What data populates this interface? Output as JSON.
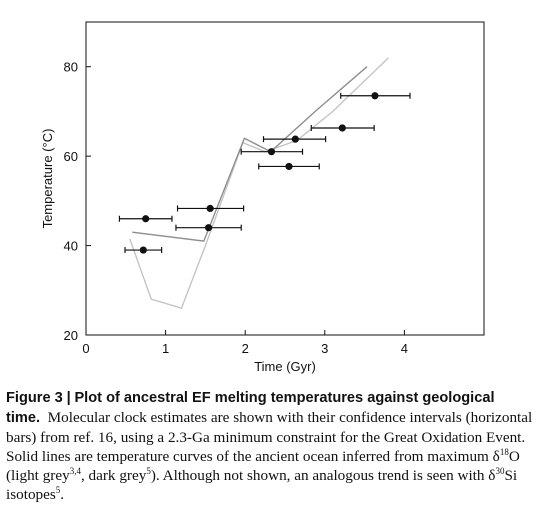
{
  "chart_data": {
    "type": "scatter",
    "xlabel": "Time (Gyr)",
    "ylabel": "Temperature (°C)",
    "xlim": [
      0,
      5
    ],
    "ylim": [
      20,
      90
    ],
    "x_ticks": [
      0,
      1,
      2,
      3,
      4
    ],
    "y_ticks": [
      20,
      40,
      60,
      80
    ],
    "grid": false,
    "points": [
      {
        "x": 0.75,
        "y": 46,
        "xerr_low": 0.42,
        "xerr_high": 1.08
      },
      {
        "x": 0.72,
        "y": 39,
        "xerr_low": 0.49,
        "xerr_high": 0.95
      },
      {
        "x": 1.56,
        "y": 48.3,
        "xerr_low": 1.15,
        "xerr_high": 1.98
      },
      {
        "x": 1.54,
        "y": 44,
        "xerr_low": 1.13,
        "xerr_high": 1.95
      },
      {
        "x": 2.33,
        "y": 61,
        "xerr_low": 1.95,
        "xerr_high": 2.72
      },
      {
        "x": 2.63,
        "y": 63.8,
        "xerr_low": 2.23,
        "xerr_high": 3.01
      },
      {
        "x": 2.55,
        "y": 57.7,
        "xerr_low": 2.17,
        "xerr_high": 2.93
      },
      {
        "x": 3.22,
        "y": 66.3,
        "xerr_low": 2.83,
        "xerr_high": 3.62
      },
      {
        "x": 3.63,
        "y": 73.5,
        "xerr_low": 3.2,
        "xerr_high": 4.07
      }
    ],
    "curves": [
      {
        "shade": "light grey",
        "color": "#c4c4c4",
        "x": [
          0.55,
          0.82,
          1.2,
          1.5,
          1.97,
          2.25,
          2.65,
          3.1,
          3.8
        ],
        "y": [
          41.5,
          28,
          26,
          40,
          63,
          61,
          63.5,
          70,
          82
        ]
      },
      {
        "shade": "dark grey",
        "color": "#8e8e8e",
        "x": [
          0.58,
          1.48,
          1.99,
          2.32,
          2.88,
          3.53
        ],
        "y": [
          43,
          41,
          64,
          61,
          70,
          80
        ]
      }
    ],
    "marker_color": "#111111"
  },
  "caption": {
    "head": "Figure 3",
    "separator": "|",
    "title": "Plot of ancestral EF melting temperatures against geological time.",
    "text1": "Molecular clock estimates are shown with their confidence intervals (horizontal bars) from ref. 16, using a 2.3-Ga minimum constraint for the Great Oxidation Event. Solid lines are temperature curves of the ancient ocean inferred from maximum δ",
    "sup1": "18",
    "text2": "O (light grey",
    "sup2": "3,4",
    "text3": ", dark grey",
    "sup3": "5",
    "text4": "). Although not shown, an analogous trend is seen with δ",
    "sup4": "30",
    "text5": "Si isotopes",
    "sup5": "5",
    "text6": "."
  }
}
